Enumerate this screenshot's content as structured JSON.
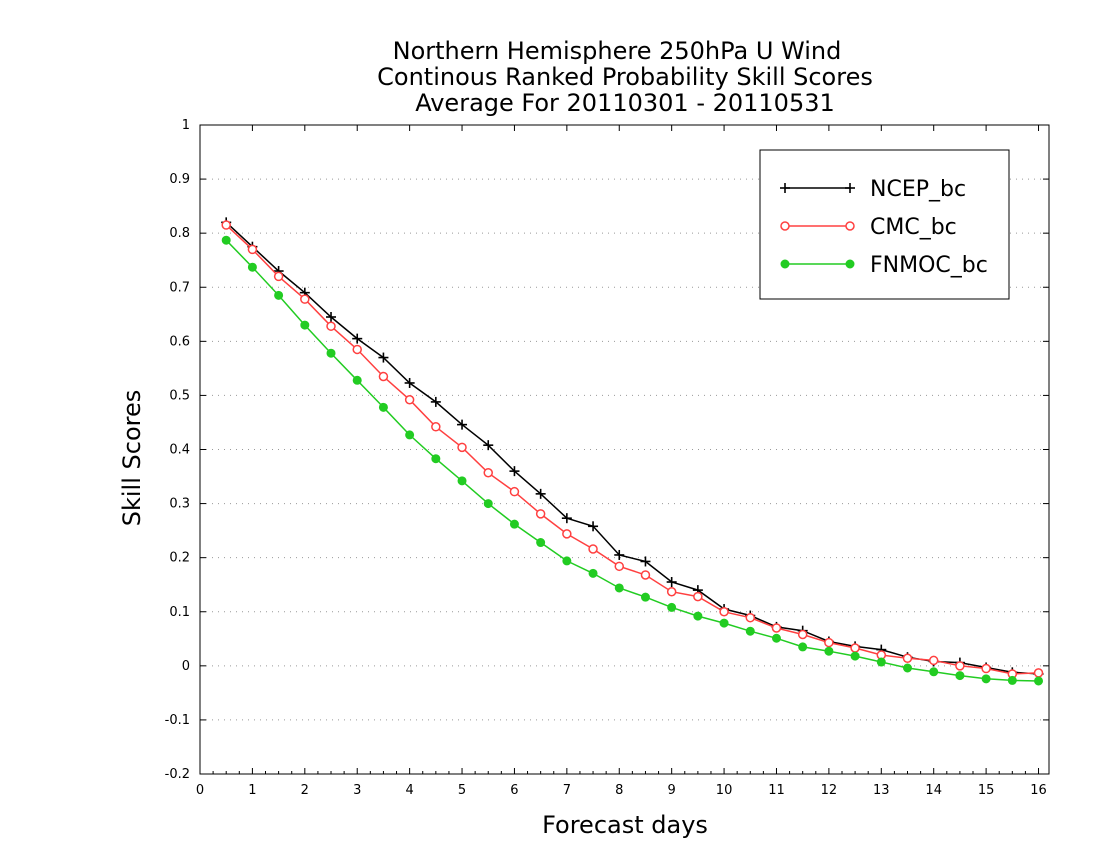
{
  "chart_data": {
    "type": "line",
    "title": [
      "Northern Hemisphere 250hPa U Wind",
      "Continous Ranked Probability Skill Scores",
      "Average For 20110301 - 20110531"
    ],
    "xlabel": "Forecast days",
    "ylabel": "Skill Scores",
    "xlim": [
      0,
      16.2
    ],
    "ylim": [
      -0.2,
      1
    ],
    "x_ticks": [
      0,
      1,
      2,
      3,
      4,
      5,
      6,
      7,
      8,
      9,
      10,
      11,
      12,
      13,
      14,
      15,
      16
    ],
    "x_tick_labels": [
      "0",
      "1",
      "2",
      "3",
      "4",
      "5",
      "6",
      "7",
      "8",
      "9",
      "10",
      "11",
      "12",
      "13",
      "14",
      "15",
      "16"
    ],
    "y_ticks": [
      -0.2,
      -0.1,
      0,
      0.1,
      0.2,
      0.3,
      0.4,
      0.5,
      0.6,
      0.7,
      0.8,
      0.9,
      1
    ],
    "y_tick_labels": [
      "-0.2",
      "-0.1",
      "0",
      "0.1",
      "0.2",
      "0.3",
      "0.4",
      "0.5",
      "0.6",
      "0.7",
      "0.8",
      "0.9",
      "1"
    ],
    "grid": "horizontal-dotted",
    "legend_position": "top-right",
    "x": [
      0.5,
      1,
      1.5,
      2,
      2.5,
      3,
      3.5,
      4,
      4.5,
      5,
      5.5,
      6,
      6.5,
      7,
      7.5,
      8,
      8.5,
      9,
      9.5,
      10,
      10.5,
      11,
      11.5,
      12,
      12.5,
      13,
      13.5,
      14,
      14.5,
      15,
      15.5,
      16
    ],
    "series": [
      {
        "name": "NCEP_bc",
        "color": "#000000",
        "marker": "plus",
        "values": [
          0.82,
          0.775,
          0.73,
          0.69,
          0.645,
          0.605,
          0.57,
          0.523,
          0.488,
          0.446,
          0.408,
          0.36,
          0.318,
          0.273,
          0.258,
          0.205,
          0.193,
          0.155,
          0.14,
          0.105,
          0.093,
          0.072,
          0.065,
          0.045,
          0.036,
          0.03,
          0.016,
          0.008,
          0.006,
          -0.003,
          -0.012,
          -0.015
        ]
      },
      {
        "name": "CMC_bc",
        "color": "#ff4040",
        "marker": "open-circle",
        "values": [
          0.815,
          0.77,
          0.72,
          0.678,
          0.628,
          0.585,
          0.535,
          0.492,
          0.442,
          0.404,
          0.357,
          0.322,
          0.281,
          0.244,
          0.216,
          0.184,
          0.168,
          0.137,
          0.128,
          0.1,
          0.089,
          0.07,
          0.058,
          0.043,
          0.033,
          0.02,
          0.014,
          0.01,
          0.0,
          -0.005,
          -0.015,
          -0.013
        ]
      },
      {
        "name": "FNMOC_bc",
        "color": "#22cc22",
        "marker": "filled-circle",
        "values": [
          0.787,
          0.737,
          0.685,
          0.63,
          0.578,
          0.528,
          0.478,
          0.427,
          0.383,
          0.342,
          0.3,
          0.262,
          0.228,
          0.194,
          0.171,
          0.144,
          0.127,
          0.108,
          0.092,
          0.079,
          0.064,
          0.051,
          0.035,
          0.027,
          0.018,
          0.007,
          -0.004,
          -0.011,
          -0.018,
          -0.024,
          -0.027,
          -0.028
        ]
      }
    ]
  }
}
